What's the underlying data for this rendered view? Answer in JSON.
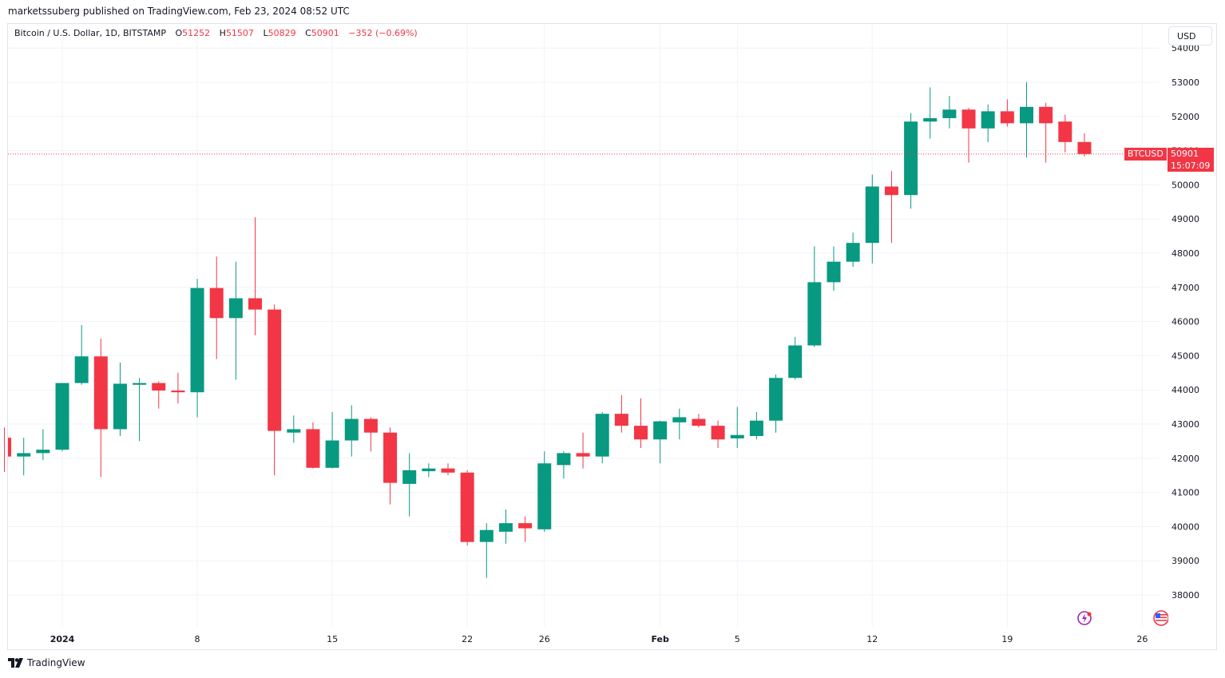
{
  "publisher_line": "marketssuberg published on TradingView.com, Feb 23, 2024 08:52 UTC",
  "legend": {
    "title": "Bitcoin / U.S. Dollar, 1D, BITSTAMP",
    "o_label": "O",
    "o_value": "51252",
    "h_label": "H",
    "h_value": "51507",
    "l_label": "L",
    "l_value": "50829",
    "c_label": "C",
    "c_value": "50901",
    "change": "−352 (−0.69%)"
  },
  "currency_button": "USD",
  "price_tag": {
    "symbol": "BTCUSD",
    "price": "50901",
    "countdown": "15:07:09"
  },
  "footer": {
    "brand": "TradingView"
  },
  "colors": {
    "up": "#089981",
    "down": "#f23645",
    "grid": "#f0f3fa",
    "axis_text": "#131722"
  },
  "chart_data": {
    "type": "candlestick",
    "title": "Bitcoin / U.S. Dollar, 1D, BITSTAMP",
    "ylim": [
      37300,
      54100
    ],
    "y_ticks": [
      "38000",
      "39000",
      "40000",
      "41000",
      "42000",
      "43000",
      "44000",
      "45000",
      "46000",
      "47000",
      "48000",
      "49000",
      "50000",
      "51000",
      "52000",
      "53000",
      "54000"
    ],
    "x_ticks": [
      {
        "label": "2024",
        "index": 3
      },
      {
        "label": "8",
        "index": 10
      },
      {
        "label": "15",
        "index": 17
      },
      {
        "label": "22",
        "index": 24
      },
      {
        "label": "26",
        "index": 28
      },
      {
        "label": "Feb",
        "index": 34
      },
      {
        "label": "5",
        "index": 38
      },
      {
        "label": "12",
        "index": 45
      },
      {
        "label": "19",
        "index": 52
      },
      {
        "label": "26",
        "index": 59
      }
    ],
    "last_price": 50901,
    "candles": [
      {
        "date": "2023-12-29",
        "o": 42600,
        "h": 42900,
        "l": 41600,
        "c": 42050
      },
      {
        "date": "2023-12-30",
        "o": 42050,
        "h": 42600,
        "l": 41500,
        "c": 42150
      },
      {
        "date": "2023-12-31",
        "o": 42150,
        "h": 42850,
        "l": 41950,
        "c": 42250
      },
      {
        "date": "2024-01-01",
        "o": 42250,
        "h": 44200,
        "l": 42200,
        "c": 44200
      },
      {
        "date": "2024-01-02",
        "o": 44200,
        "h": 45900,
        "l": 44150,
        "c": 44980
      },
      {
        "date": "2024-01-03",
        "o": 44980,
        "h": 45500,
        "l": 41450,
        "c": 42850
      },
      {
        "date": "2024-01-04",
        "o": 42850,
        "h": 44800,
        "l": 42650,
        "c": 44180
      },
      {
        "date": "2024-01-05",
        "o": 44150,
        "h": 44350,
        "l": 42500,
        "c": 44200
      },
      {
        "date": "2024-01-06",
        "o": 44200,
        "h": 44250,
        "l": 43450,
        "c": 43980
      },
      {
        "date": "2024-01-07",
        "o": 43980,
        "h": 44500,
        "l": 43600,
        "c": 43930
      },
      {
        "date": "2024-01-08",
        "o": 43930,
        "h": 47250,
        "l": 43200,
        "c": 46980
      },
      {
        "date": "2024-01-09",
        "o": 46980,
        "h": 47900,
        "l": 44900,
        "c": 46100
      },
      {
        "date": "2024-01-10",
        "o": 46100,
        "h": 47750,
        "l": 44300,
        "c": 46680
      },
      {
        "date": "2024-01-11",
        "o": 46680,
        "h": 49050,
        "l": 45600,
        "c": 46350
      },
      {
        "date": "2024-01-12",
        "o": 46350,
        "h": 46500,
        "l": 41500,
        "c": 42800
      },
      {
        "date": "2024-01-13",
        "o": 42750,
        "h": 43250,
        "l": 42450,
        "c": 42850
      },
      {
        "date": "2024-01-14",
        "o": 42850,
        "h": 43050,
        "l": 41700,
        "c": 41720
      },
      {
        "date": "2024-01-15",
        "o": 41720,
        "h": 43350,
        "l": 41700,
        "c": 42520
      },
      {
        "date": "2024-01-16",
        "o": 42520,
        "h": 43550,
        "l": 42050,
        "c": 43150
      },
      {
        "date": "2024-01-17",
        "o": 43150,
        "h": 43200,
        "l": 42200,
        "c": 42750
      },
      {
        "date": "2024-01-18",
        "o": 42750,
        "h": 42900,
        "l": 40650,
        "c": 41280
      },
      {
        "date": "2024-01-19",
        "o": 41250,
        "h": 42150,
        "l": 40300,
        "c": 41650
      },
      {
        "date": "2024-01-20",
        "o": 41620,
        "h": 41850,
        "l": 41450,
        "c": 41700
      },
      {
        "date": "2024-01-21",
        "o": 41700,
        "h": 41850,
        "l": 41500,
        "c": 41580
      },
      {
        "date": "2024-01-22",
        "o": 41580,
        "h": 41650,
        "l": 39450,
        "c": 39550
      },
      {
        "date": "2024-01-23",
        "o": 39550,
        "h": 40100,
        "l": 38500,
        "c": 39900
      },
      {
        "date": "2024-01-24",
        "o": 39850,
        "h": 40500,
        "l": 39500,
        "c": 40100
      },
      {
        "date": "2024-01-25",
        "o": 40100,
        "h": 40300,
        "l": 39550,
        "c": 39950
      },
      {
        "date": "2024-01-26",
        "o": 39920,
        "h": 42200,
        "l": 39850,
        "c": 41850
      },
      {
        "date": "2024-01-27",
        "o": 41800,
        "h": 42200,
        "l": 41400,
        "c": 42150
      },
      {
        "date": "2024-01-28",
        "o": 42150,
        "h": 42750,
        "l": 41700,
        "c": 42050
      },
      {
        "date": "2024-01-29",
        "o": 42050,
        "h": 43350,
        "l": 41850,
        "c": 43300
      },
      {
        "date": "2024-01-30",
        "o": 43300,
        "h": 43850,
        "l": 42750,
        "c": 42950
      },
      {
        "date": "2024-01-31",
        "o": 42950,
        "h": 43750,
        "l": 42300,
        "c": 42550
      },
      {
        "date": "2024-02-01",
        "o": 42550,
        "h": 43100,
        "l": 41850,
        "c": 43080
      },
      {
        "date": "2024-02-02",
        "o": 43050,
        "h": 43450,
        "l": 42550,
        "c": 43200
      },
      {
        "date": "2024-02-03",
        "o": 43150,
        "h": 43300,
        "l": 42900,
        "c": 42950
      },
      {
        "date": "2024-02-04",
        "o": 42950,
        "h": 43100,
        "l": 42300,
        "c": 42550
      },
      {
        "date": "2024-02-05",
        "o": 42580,
        "h": 43500,
        "l": 42300,
        "c": 42680
      },
      {
        "date": "2024-02-06",
        "o": 42650,
        "h": 43350,
        "l": 42550,
        "c": 43100
      },
      {
        "date": "2024-02-07",
        "o": 43100,
        "h": 44450,
        "l": 42750,
        "c": 44350
      },
      {
        "date": "2024-02-08",
        "o": 44350,
        "h": 45550,
        "l": 44300,
        "c": 45300
      },
      {
        "date": "2024-02-09",
        "o": 45300,
        "h": 48200,
        "l": 45250,
        "c": 47150
      },
      {
        "date": "2024-02-10",
        "o": 47150,
        "h": 48200,
        "l": 46900,
        "c": 47750
      },
      {
        "date": "2024-02-11",
        "o": 47750,
        "h": 48600,
        "l": 47600,
        "c": 48300
      },
      {
        "date": "2024-02-12",
        "o": 48300,
        "h": 50300,
        "l": 47700,
        "c": 49950
      },
      {
        "date": "2024-02-13",
        "o": 49950,
        "h": 50400,
        "l": 48300,
        "c": 49700
      },
      {
        "date": "2024-02-14",
        "o": 49700,
        "h": 52100,
        "l": 49300,
        "c": 51850
      },
      {
        "date": "2024-02-15",
        "o": 51850,
        "h": 52850,
        "l": 51350,
        "c": 51950
      },
      {
        "date": "2024-02-16",
        "o": 51950,
        "h": 52600,
        "l": 51650,
        "c": 52200
      },
      {
        "date": "2024-02-17",
        "o": 52200,
        "h": 52250,
        "l": 50650,
        "c": 51650
      },
      {
        "date": "2024-02-18",
        "o": 51650,
        "h": 52350,
        "l": 51250,
        "c": 52150
      },
      {
        "date": "2024-02-19",
        "o": 52150,
        "h": 52500,
        "l": 51700,
        "c": 51800
      },
      {
        "date": "2024-02-20",
        "o": 51800,
        "h": 53000,
        "l": 50800,
        "c": 52280
      },
      {
        "date": "2024-02-21",
        "o": 52280,
        "h": 52400,
        "l": 50650,
        "c": 51800
      },
      {
        "date": "2024-02-22",
        "o": 51850,
        "h": 52050,
        "l": 50950,
        "c": 51252
      },
      {
        "date": "2024-02-23",
        "o": 51252,
        "h": 51507,
        "l": 50829,
        "c": 50901
      }
    ]
  }
}
